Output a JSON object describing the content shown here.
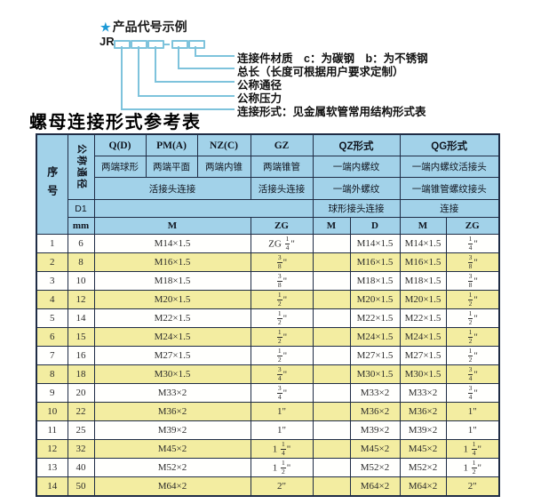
{
  "colors": {
    "header_bg": "#a2d2e9",
    "row_alt_bg": "#f3eda1",
    "row_bg": "#ffffff",
    "border": "#1f2c45",
    "diagram_line": "#7ec3dc",
    "star_blue": "#1e9ad6"
  },
  "code_diagram": {
    "star": "★",
    "heading": "产品代号示例",
    "prefix": "JR",
    "separator": "-",
    "labels": [
      "连接件材质　c：为碳钢　b：为不锈钢",
      "总长（长度可根据用户要求定制）",
      "公称通径",
      "公称压力",
      "连接形式：见金属软管常用结构形式表"
    ]
  },
  "table": {
    "title": "螺母连接形式参考表",
    "corner": {
      "seq": "序号",
      "dn": "公称通径",
      "d1": "D1",
      "unit": "mm"
    },
    "groups": [
      "Q(D)",
      "PM(A)",
      "NZ(C)",
      "GZ",
      "QZ形式",
      "QG形式"
    ],
    "styles": [
      "两端球形",
      "两端平面",
      "两端内锥",
      "两端锥管",
      "一端内螺纹",
      "一端内螺纹活接头"
    ],
    "connections": [
      "活接头连接",
      "活接头连接",
      "一端外螺纹",
      "一端锥管螺纹接头"
    ],
    "connections2": [
      "球形接头连接",
      "连接"
    ],
    "thread_cols": [
      "M",
      "ZG",
      "M",
      "D",
      "M",
      "ZG"
    ],
    "rows": [
      {
        "seq": "1",
        "dn": "6",
        "m": "M14×1.5",
        "gz": "ZG 1/4\"",
        "qz_m": "",
        "qz_d": "M14×1.5",
        "qg_m": "M14×1.5",
        "qg_zg": "1/4\""
      },
      {
        "seq": "2",
        "dn": "8",
        "m": "M16×1.5",
        "gz": "3/8\"",
        "qz_m": "",
        "qz_d": "M16×1.5",
        "qg_m": "M16×1.5",
        "qg_zg": "3/8\""
      },
      {
        "seq": "3",
        "dn": "10",
        "m": "M18×1.5",
        "gz": "3/8\"",
        "qz_m": "",
        "qz_d": "M18×1.5",
        "qg_m": "M18×1.5",
        "qg_zg": "3/8\""
      },
      {
        "seq": "4",
        "dn": "12",
        "m": "M20×1.5",
        "gz": "1/2\"",
        "qz_m": "",
        "qz_d": "M20×1.5",
        "qg_m": "M20×1.5",
        "qg_zg": "1/2\""
      },
      {
        "seq": "5",
        "dn": "14",
        "m": "M22×1.5",
        "gz": "1/2\"",
        "qz_m": "",
        "qz_d": "M22×1.5",
        "qg_m": "M22×1.5",
        "qg_zg": "1/2\""
      },
      {
        "seq": "6",
        "dn": "15",
        "m": "M24×1.5",
        "gz": "1/2\"",
        "qz_m": "",
        "qz_d": "M24×1.5",
        "qg_m": "M24×1.5",
        "qg_zg": "1/2\""
      },
      {
        "seq": "7",
        "dn": "16",
        "m": "M27×1.5",
        "gz": "1/2\"",
        "qz_m": "",
        "qz_d": "M27×1.5",
        "qg_m": "M27×1.5",
        "qg_zg": "1/2\""
      },
      {
        "seq": "8",
        "dn": "18",
        "m": "M30×1.5",
        "gz": "3/4\"",
        "qz_m": "",
        "qz_d": "M30×1.5",
        "qg_m": "M30×1.5",
        "qg_zg": "3/4\""
      },
      {
        "seq": "9",
        "dn": "20",
        "m": "M33×2",
        "gz": "3/4\"",
        "qz_m": "",
        "qz_d": "M33×2",
        "qg_m": "M33×2",
        "qg_zg": "3/4\""
      },
      {
        "seq": "10",
        "dn": "22",
        "m": "M36×2",
        "gz": "1\"",
        "qz_m": "",
        "qz_d": "M36×2",
        "qg_m": "M36×2",
        "qg_zg": "1\""
      },
      {
        "seq": "11",
        "dn": "25",
        "m": "M39×2",
        "gz": "1\"",
        "qz_m": "",
        "qz_d": "M39×2",
        "qg_m": "M39×2",
        "qg_zg": "1\""
      },
      {
        "seq": "12",
        "dn": "32",
        "m": "M45×2",
        "gz": "1 1/4\"",
        "qz_m": "",
        "qz_d": "M45×2",
        "qg_m": "M45×2",
        "qg_zg": "1 1/4\""
      },
      {
        "seq": "13",
        "dn": "40",
        "m": "M52×2",
        "gz": "1 1/2\"",
        "qz_m": "",
        "qz_d": "M52×2",
        "qg_m": "M52×2",
        "qg_zg": "1 1/2\""
      },
      {
        "seq": "14",
        "dn": "50",
        "m": "M64×2",
        "gz": "2\"",
        "qz_m": "",
        "qz_d": "M64×2",
        "qg_m": "M64×2",
        "qg_zg": "2\""
      }
    ]
  }
}
